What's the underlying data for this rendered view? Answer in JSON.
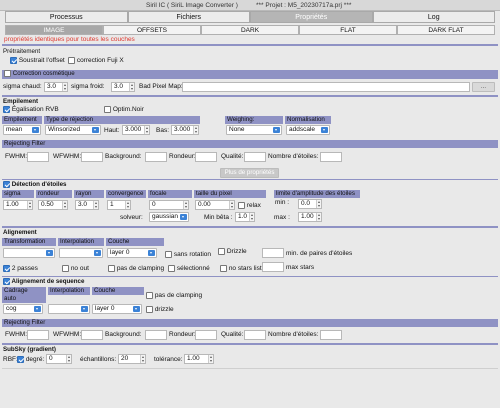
{
  "window": {
    "title": "Siril IC  ( SiriL Image Converter )",
    "project": "*** Projet : M5_20230717a.prj ***"
  },
  "main_tabs": [
    {
      "label": "Processus",
      "active": false
    },
    {
      "label": "Fichiers",
      "active": false
    },
    {
      "label": "Propriétés",
      "active": true
    },
    {
      "label": "Log",
      "active": false
    }
  ],
  "sub_tabs": [
    {
      "label": "IMAGE",
      "active": true
    },
    {
      "label": "OFFSETS",
      "active": false
    },
    {
      "label": "DARK",
      "active": false
    },
    {
      "label": "FLAT",
      "active": false
    },
    {
      "label": "DARK FLAT",
      "active": false
    }
  ],
  "identical_note": "propriétés identiques pour toutes les couches",
  "pretraitement": {
    "title": "Prétraitement",
    "subtract_offset": {
      "label": "Soustrait l'offset",
      "checked": true
    },
    "fuji_correction": {
      "label": "correction Fuji X",
      "checked": false
    }
  },
  "cosmetic": {
    "label": "Correction cosmétique",
    "checked": false,
    "sigma_hot_label": "sigma chaud:",
    "sigma_hot": "3.0",
    "sigma_cold_label": "sigma froid:",
    "sigma_cold": "3.0",
    "bad_pixel_label": "Bad Pixel Map:",
    "bad_pixel_value": "",
    "browse_label": "..."
  },
  "empilement": {
    "title": "Empilement",
    "rvb_equalization": {
      "label": "Égalisation RVB",
      "checked": true
    },
    "optim_noir": {
      "label": "Optim.Noir",
      "checked": false
    },
    "col_empilement": "Empilement",
    "col_rejection": "Type de réjection",
    "col_weighing": "Weighing:",
    "col_normalisation": "Normalisation",
    "method": "mean",
    "rejection": "Winsorized",
    "haut_label": "Haut:",
    "haut": "3.000",
    "bas_label": "Bas:",
    "bas": "3.000",
    "weighing": "None",
    "normalisation": "addscale"
  },
  "rejecting_filter_1": {
    "title": "Rejecting Filter",
    "fwhm": "FWHM:",
    "wfwhm": "WFWHM:",
    "background": "Background:",
    "roundness": "Rondeur:",
    "quality": "Qualité:",
    "star_count": "Nombre d'étoiles:"
  },
  "more_props_label": "Plus de propriétés",
  "star_detection": {
    "label": "Détection d'étoiles",
    "checked": true,
    "headers": [
      "sigma",
      "rondeur",
      "rayon",
      "convergence",
      "focale",
      "taille du pixel",
      "limite d'amplitude des étoiles"
    ],
    "sigma": "1.00",
    "rondeur": "0.50",
    "rayon": "3.0",
    "convergence": "1",
    "focale": "0",
    "pixel_size": "0.00",
    "relax_label": "relax",
    "relax_checked": false,
    "min_label": "min :",
    "min": "0.0",
    "max_label": "max :",
    "max": "1.00",
    "solver_label": "solveur:",
    "solver": "gaussian",
    "min_beta_label": "Min bêta :",
    "min_beta": "1.0"
  },
  "alignment": {
    "title": "Alignement",
    "transformation_label": "Transformation",
    "interpolation_label": "Interpolation",
    "layer_label": "Couche",
    "transformation": "",
    "interpolation": "",
    "layer": "layer 0",
    "no_rotation": {
      "label": "sans rotation",
      "checked": false
    },
    "drizzle": {
      "label": "Drizzle",
      "checked": false
    },
    "min_pairs_label": "min. de paires d'étoiles",
    "min_pairs": "",
    "two_passes": {
      "label": "2 passes",
      "checked": true
    },
    "no_out": {
      "label": "no out",
      "checked": false
    },
    "no_clamping": {
      "label": "pas de clamping",
      "checked": false
    },
    "selected": {
      "label": "sélectionné",
      "checked": false
    },
    "no_stars_list": {
      "label": "no stars list",
      "checked": false
    },
    "max_stars_label": "max  stars",
    "max_stars": ""
  },
  "seq_alignment": {
    "label": "Alignement de sequence",
    "checked": true,
    "cadrage_label": "Cadrage",
    "interpolation_label": "Interpolation",
    "layer_label": "Couche",
    "auto_label": "auto",
    "cadrage": "cog",
    "interpolation": "",
    "layer": "layer 0",
    "no_clamping": {
      "label": "pas de clamping",
      "checked": false
    },
    "drizzle": {
      "label": "drizzle",
      "checked": false
    }
  },
  "rejecting_filter_2": {
    "title": "Rejecting Filter",
    "fwhm": "FWHM:",
    "wfwhm": "WFWHM:",
    "background": "Background:",
    "roundness": "Rondeur:",
    "quality": "Qualité:",
    "star_count": "Nombre d'étoiles:"
  },
  "subsky": {
    "title": "SubSky (gradient)",
    "rbf_label": "RBF:",
    "degree_label": "degré:",
    "degree_checked": true,
    "degree": "0",
    "samples_label": "échantillons:",
    "samples": "20",
    "tolerance_label": "tolérance:",
    "tolerance": "1.00"
  }
}
